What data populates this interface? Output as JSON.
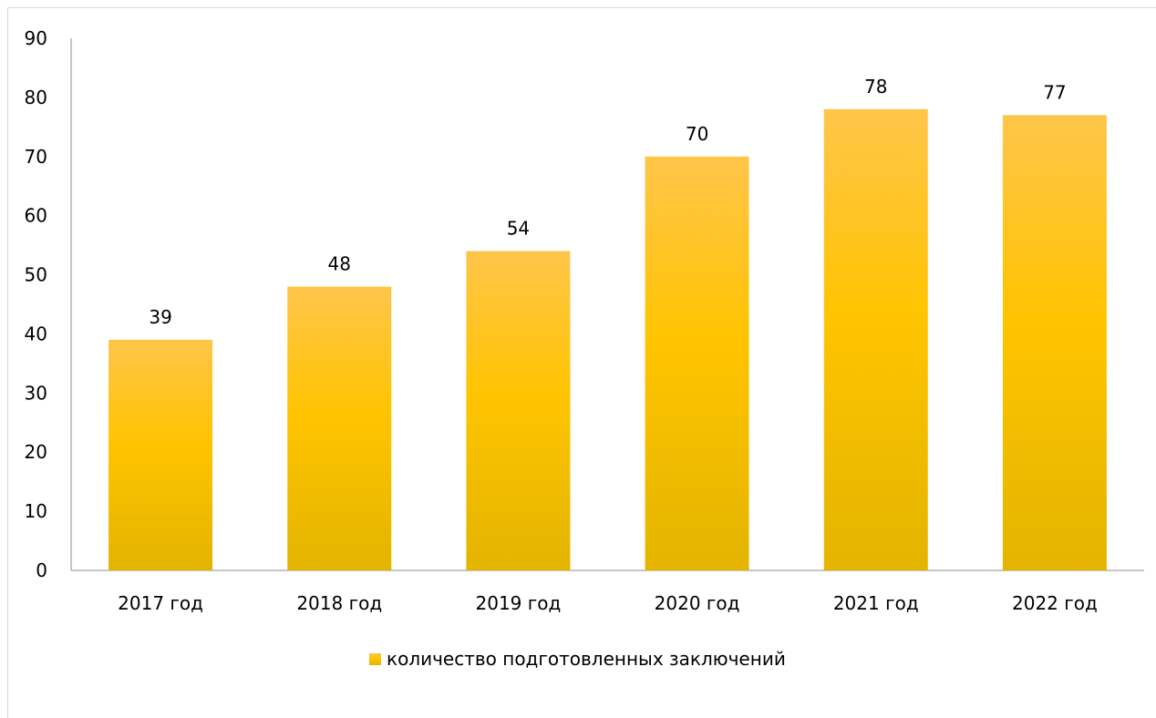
{
  "chart_data": {
    "type": "bar",
    "categories": [
      "2017 год",
      "2018 год",
      "2019 год",
      "2020 год",
      "2021 год",
      "2022 год"
    ],
    "series": [
      {
        "name": "количество подготовленных заключений",
        "values": [
          39,
          48,
          54,
          70,
          78,
          77
        ]
      }
    ],
    "ylim": [
      0,
      90
    ],
    "yticks": [
      0,
      10,
      20,
      30,
      40,
      50,
      60,
      70,
      80,
      90
    ],
    "data_labels": true,
    "grid": false,
    "legend_position": "bottom",
    "colors": {
      "bar_top": "#ffc54a",
      "bar_mid": "#ffc400",
      "bar_bottom": "#e3b400",
      "axis": "#8c8c8c"
    }
  }
}
